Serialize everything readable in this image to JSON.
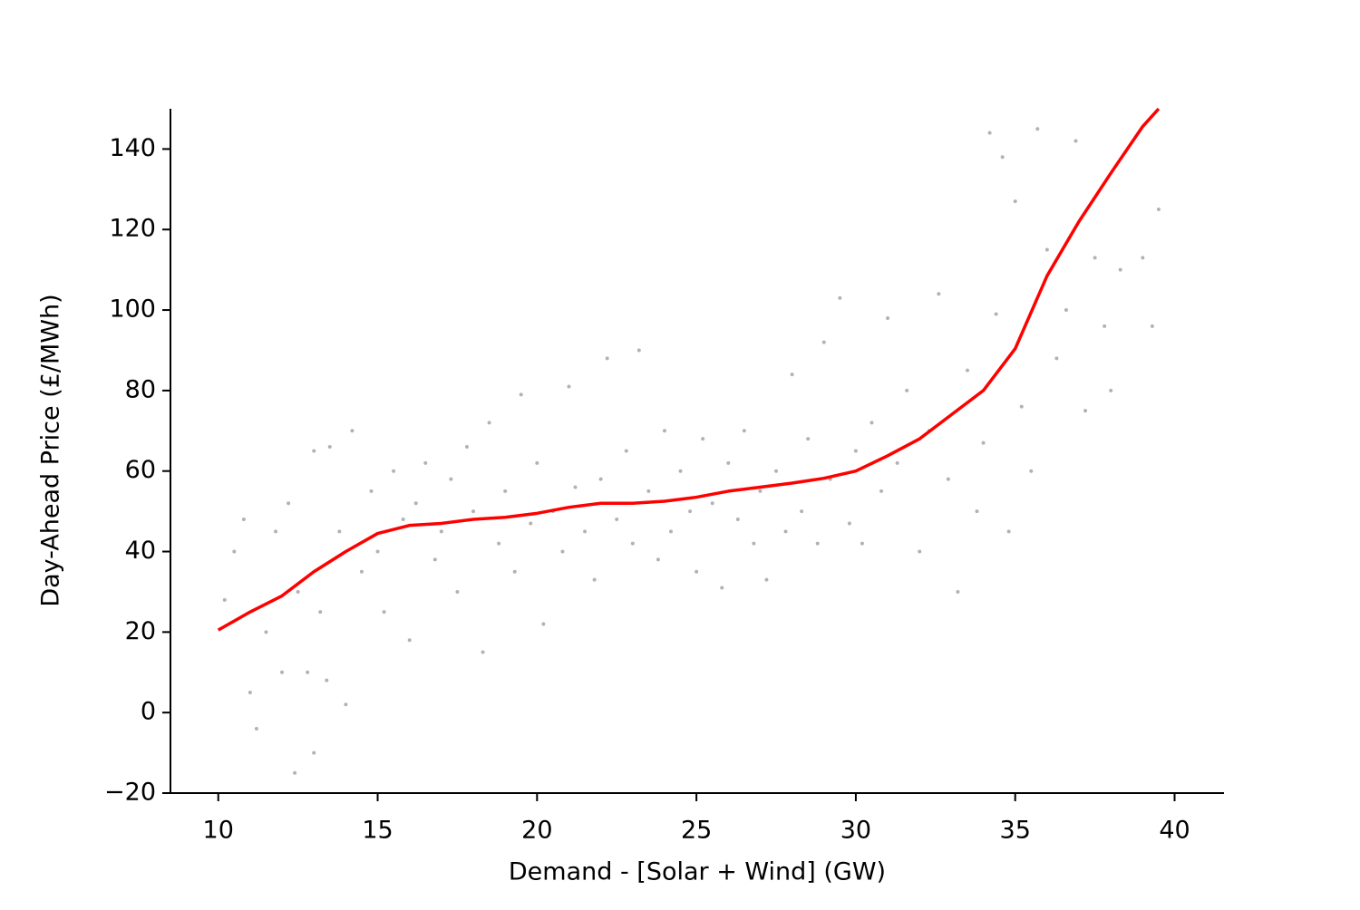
{
  "chart_data": {
    "type": "scatter",
    "x_label": "Demand - [Solar + Wind] (GW)",
    "y_label": "Day-Ahead Price (£/MWh)",
    "xlim": [
      8.5,
      41.55
    ],
    "ylim": [
      -20,
      150
    ],
    "xticks": [
      10,
      15,
      20,
      25,
      30,
      35,
      40
    ],
    "yticks": [
      {
        "value": -20,
        "label": "−20"
      },
      0,
      20,
      40,
      60,
      80,
      100,
      120,
      140
    ],
    "grid": false,
    "series": [
      {
        "type": "scatter",
        "color": "#000000",
        "x": [
          10.2,
          10.5,
          10.8,
          11,
          11.2,
          11.5,
          11.8,
          12,
          12.2,
          12.4,
          12.5,
          12.8,
          13,
          13,
          13.2,
          13.4,
          13.5,
          13.8,
          14,
          14.2,
          14.5,
          14.8,
          15,
          15.2,
          15.5,
          15.8,
          16,
          16.2,
          16.5,
          16.8,
          17,
          17.3,
          17.5,
          17.8,
          18,
          18.3,
          18.5,
          18.8,
          19,
          19.3,
          19.5,
          19.8,
          20,
          20.2,
          20.5,
          20.8,
          21,
          21.2,
          21.5,
          21.8,
          22,
          22.2,
          22.5,
          22.8,
          23,
          23.2,
          23.5,
          23.8,
          24,
          24.2,
          24.5,
          24.8,
          25,
          25.2,
          25.5,
          25.8,
          26,
          26.3,
          26.5,
          26.8,
          27,
          27.2,
          27.5,
          27.8,
          28,
          28.3,
          28.5,
          28.8,
          29,
          29.2,
          29.5,
          29.8,
          30,
          30.2,
          30.5,
          30.8,
          31,
          31.3,
          31.6,
          32,
          32.3,
          32.6,
          32.9,
          33.2,
          33.5,
          33.8,
          34,
          34.2,
          34.4,
          34.6,
          34.8,
          35,
          35.2,
          35.5,
          35.7,
          36,
          36.3,
          36.6,
          36.9,
          37.2,
          37.5,
          37.8,
          38,
          38.3,
          39,
          39.3,
          39.5
        ],
        "values": [
          28,
          40,
          48,
          5,
          -4,
          20,
          45,
          10,
          52,
          -15,
          30,
          10,
          65,
          -10,
          25,
          8,
          66,
          45,
          2,
          70,
          35,
          55,
          40,
          25,
          60,
          48,
          18,
          52,
          62,
          38,
          45,
          58,
          30,
          66,
          50,
          15,
          72,
          42,
          55,
          35,
          79,
          47,
          62,
          22,
          50,
          40,
          81,
          56,
          45,
          33,
          58,
          88,
          48,
          65,
          42,
          90,
          55,
          38,
          70,
          45,
          60,
          50,
          35,
          68,
          52,
          31,
          62,
          48,
          70,
          42,
          55,
          33,
          60,
          45,
          84,
          50,
          68,
          42,
          92,
          58,
          103,
          47,
          65,
          42,
          72,
          55,
          98,
          62,
          80,
          40,
          70,
          104,
          58,
          30,
          85,
          50,
          67,
          144,
          99,
          138,
          45,
          127,
          76,
          60,
          145,
          115,
          88,
          100,
          142,
          75,
          113,
          96,
          80,
          110,
          113,
          96,
          125
        ]
      },
      {
        "type": "line",
        "color": "#ff0000",
        "x": [
          10,
          11,
          12,
          13,
          14,
          15,
          16,
          17,
          18,
          19,
          20,
          21,
          22,
          23,
          24,
          25,
          26,
          27,
          28,
          29,
          30,
          31,
          32,
          33,
          34,
          35,
          36,
          37,
          38,
          39,
          39.5
        ],
        "values": [
          20.5,
          25,
          29,
          35,
          40,
          44.5,
          46.5,
          47,
          48,
          48.5,
          49.5,
          51,
          52,
          52,
          52.5,
          53.5,
          55,
          56,
          57,
          58.2,
          60,
          63.8,
          68,
          74,
          80,
          90.4,
          108.5,
          122,
          134,
          145.6,
          150
        ]
      }
    ]
  }
}
